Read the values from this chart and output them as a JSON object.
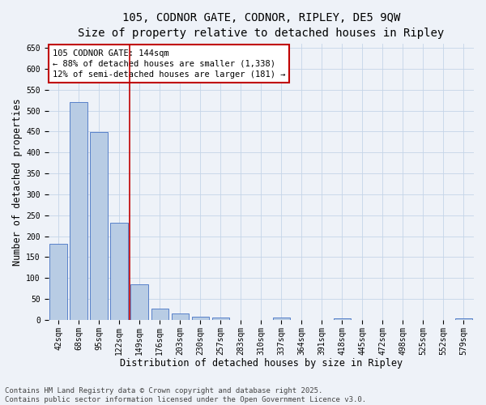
{
  "title": "105, CODNOR GATE, CODNOR, RIPLEY, DE5 9QW",
  "subtitle": "Size of property relative to detached houses in Ripley",
  "xlabel": "Distribution of detached houses by size in Ripley",
  "ylabel": "Number of detached properties",
  "categories": [
    "42sqm",
    "68sqm",
    "95sqm",
    "122sqm",
    "149sqm",
    "176sqm",
    "203sqm",
    "230sqm",
    "257sqm",
    "283sqm",
    "310sqm",
    "337sqm",
    "364sqm",
    "391sqm",
    "418sqm",
    "445sqm",
    "472sqm",
    "498sqm",
    "525sqm",
    "552sqm",
    "579sqm"
  ],
  "values": [
    182,
    520,
    448,
    232,
    85,
    27,
    15,
    8,
    5,
    0,
    0,
    6,
    0,
    0,
    3,
    0,
    0,
    0,
    0,
    0,
    3
  ],
  "bar_color": "#b8cce4",
  "bar_edge_color": "#4472c4",
  "vline_index": 3.5,
  "vline_color": "#c00000",
  "annotation_text": "105 CODNOR GATE: 144sqm\n← 88% of detached houses are smaller (1,338)\n12% of semi-detached houses are larger (181) →",
  "annotation_box_color": "#ffffff",
  "annotation_box_edge_color": "#c00000",
  "ylim": [
    0,
    660
  ],
  "yticks": [
    0,
    50,
    100,
    150,
    200,
    250,
    300,
    350,
    400,
    450,
    500,
    550,
    600,
    650
  ],
  "grid_color": "#c5d5e8",
  "background_color": "#eef2f8",
  "footer": "Contains HM Land Registry data © Crown copyright and database right 2025.\nContains public sector information licensed under the Open Government Licence v3.0.",
  "title_fontsize": 10,
  "axis_label_fontsize": 8.5,
  "tick_fontsize": 7,
  "annot_fontsize": 7.5,
  "footer_fontsize": 6.5
}
